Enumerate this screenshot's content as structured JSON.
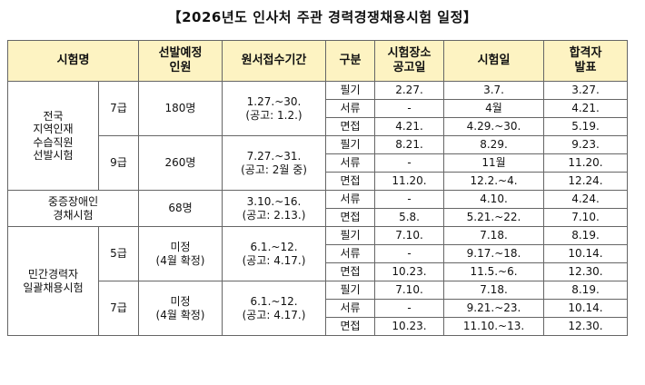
{
  "title": "【2026년도 인사처 주관 경력경쟁채용시험 일정】",
  "headers": {
    "exam_name": "시험명",
    "selection": "선발예정\n인원",
    "application_period": "원서접수기간",
    "category": "구분",
    "venue_notice": "시험장소\n공고일",
    "exam_date": "시험일",
    "result": "합격자\n발표"
  },
  "groups": {
    "local": "전국\n지역인재\n수습직원\n선발시험",
    "disabled": "중증장애인\n경채시험",
    "private": "민간경력자\n일괄채용시험"
  },
  "rows": [
    {
      "grade": "7급",
      "count": "180명",
      "period": "1.27.~30.\n(공고: 1.2.)",
      "items": [
        {
          "cat": "필기",
          "venue": "2.27.",
          "exam": "3.7.",
          "result": "3.27."
        },
        {
          "cat": "서류",
          "venue": "-",
          "exam": "4월",
          "result": "4.21."
        },
        {
          "cat": "면접",
          "venue": "4.21.",
          "exam": "4.29.~30.",
          "result": "5.19."
        }
      ]
    },
    {
      "grade": "9급",
      "count": "260명",
      "period": "7.27.~31.\n(공고: 2월 중)",
      "items": [
        {
          "cat": "필기",
          "venue": "8.21.",
          "exam": "8.29.",
          "result": "9.23."
        },
        {
          "cat": "서류",
          "venue": "-",
          "exam": "11월",
          "result": "11.20."
        },
        {
          "cat": "면접",
          "venue": "11.20.",
          "exam": "12.2.~4.",
          "result": "12.24."
        }
      ]
    },
    {
      "grade": "",
      "count": "68명",
      "period": "3.10.~16.\n(공고: 2.13.)",
      "items": [
        {
          "cat": "서류",
          "venue": "-",
          "exam": "4.10.",
          "result": "4.24."
        },
        {
          "cat": "면접",
          "venue": "5.8.",
          "exam": "5.21.~22.",
          "result": "7.10."
        }
      ]
    },
    {
      "grade": "5급",
      "count": "미정\n(4월 확정)",
      "period": "6.1.~12.\n(공고: 4.17.)",
      "items": [
        {
          "cat": "필기",
          "venue": "7.10.",
          "exam": "7.18.",
          "result": "8.19."
        },
        {
          "cat": "서류",
          "venue": "-",
          "exam": "9.17.~18.",
          "result": "10.14."
        },
        {
          "cat": "면접",
          "venue": "10.23.",
          "exam": "11.5.~6.",
          "result": "12.30."
        }
      ]
    },
    {
      "grade": "7급",
      "count": "미정\n(4월 확정)",
      "period": "6.1.~12.\n(공고: 4.17.)",
      "items": [
        {
          "cat": "필기",
          "venue": "7.10.",
          "exam": "7.18.",
          "result": "8.19."
        },
        {
          "cat": "서류",
          "venue": "-",
          "exam": "9.21.~23.",
          "result": "10.14."
        },
        {
          "cat": "면접",
          "venue": "10.23.",
          "exam": "11.10.~13.",
          "result": "12.30."
        }
      ]
    }
  ]
}
